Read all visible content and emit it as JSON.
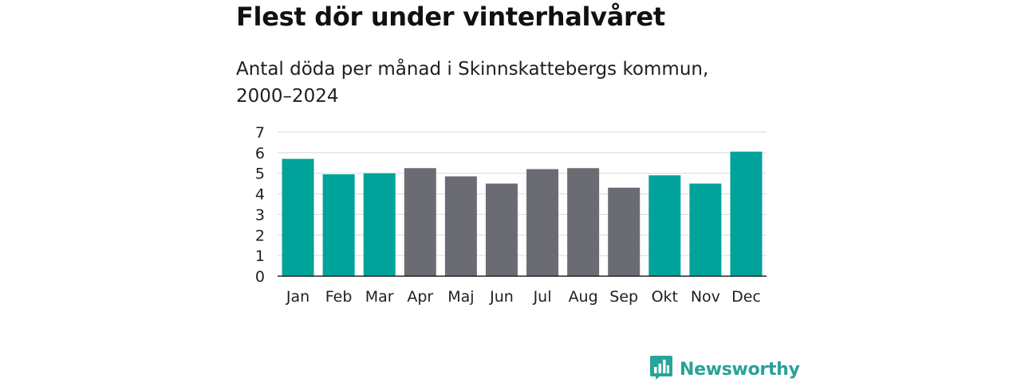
{
  "title": "Flest dör under vinterhalvåret",
  "subtitle": "Antal döda per månad i Skinnskattebergs kommun, 2000–2024",
  "brand": {
    "name": "Newsworthy",
    "icon": "bar-chart-bubble-icon",
    "color": "#27a59b"
  },
  "colors": {
    "winter": "#00a39a",
    "summer": "#6b6b73",
    "grid": "#d9d9d9",
    "axis": "#222222"
  },
  "chart_data": {
    "type": "bar",
    "title": "Flest dör under vinterhalvåret",
    "subtitle": "Antal döda per månad i Skinnskattebergs kommun, 2000–2024",
    "xlabel": "",
    "ylabel": "",
    "ylim": [
      0,
      7
    ],
    "yticks": [
      0,
      1,
      2,
      3,
      4,
      5,
      6,
      7
    ],
    "grid": true,
    "categories": [
      "Jan",
      "Feb",
      "Mar",
      "Apr",
      "Maj",
      "Jun",
      "Jul",
      "Aug",
      "Sep",
      "Okt",
      "Nov",
      "Dec"
    ],
    "values": [
      5.7,
      4.95,
      5.0,
      5.25,
      4.85,
      4.5,
      5.2,
      5.25,
      4.3,
      4.9,
      4.5,
      6.05
    ],
    "groups": [
      "winter",
      "winter",
      "winter",
      "summer",
      "summer",
      "summer",
      "summer",
      "summer",
      "summer",
      "winter",
      "winter",
      "winter"
    ]
  }
}
